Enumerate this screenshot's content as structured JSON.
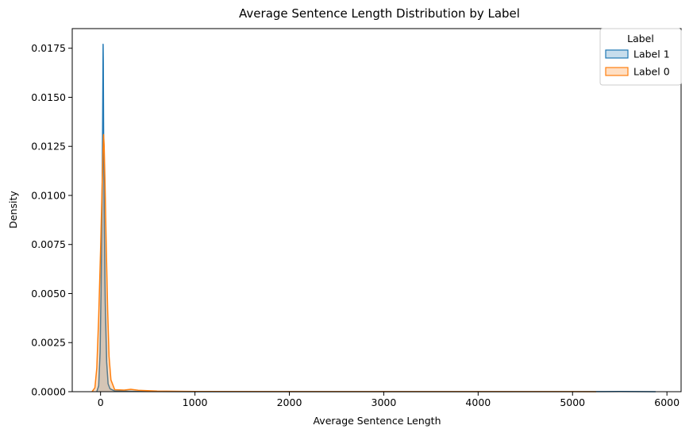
{
  "chart_data": {
    "type": "area",
    "title": "Average Sentence Length Distribution by Label",
    "xlabel": "Average Sentence Length",
    "ylabel": "Density",
    "xlim": [
      -300,
      6150
    ],
    "ylim": [
      0,
      0.0185
    ],
    "xticks": [
      0,
      1000,
      2000,
      3000,
      4000,
      5000,
      6000
    ],
    "xtick_labels": [
      "0",
      "1000",
      "2000",
      "3000",
      "4000",
      "5000",
      "6000"
    ],
    "yticks": [
      0,
      0.0025,
      0.005,
      0.0075,
      0.01,
      0.0125,
      0.015,
      0.0175
    ],
    "ytick_labels": [
      "0.0000",
      "0.0025",
      "0.0050",
      "0.0075",
      "0.0100",
      "0.0125",
      "0.0150",
      "0.0175"
    ],
    "grid": false,
    "legend": {
      "title": "Label",
      "placement": "top-right"
    },
    "series": [
      {
        "name": "Label 1",
        "color": "#1f77b4",
        "fill": "#1f77b4",
        "fill_opacity": 0.25,
        "points": [
          [
            -40,
            0
          ],
          [
            -20,
            0.0003
          ],
          [
            -5,
            0.002
          ],
          [
            5,
            0.005
          ],
          [
            15,
            0.0095
          ],
          [
            22,
            0.0135
          ],
          [
            25,
            0.0162
          ],
          [
            27,
            0.0177
          ],
          [
            29,
            0.0168
          ],
          [
            33,
            0.0125
          ],
          [
            40,
            0.0085
          ],
          [
            50,
            0.0045
          ],
          [
            65,
            0.0015
          ],
          [
            80,
            0.0004
          ],
          [
            100,
            0.00015
          ],
          [
            150,
            4e-05
          ],
          [
            400,
            1e-05
          ],
          [
            1000,
            2e-06
          ],
          [
            3000,
            5e-07
          ],
          [
            5300,
            3e-06
          ],
          [
            5500,
            8e-06
          ],
          [
            5700,
            4e-06
          ],
          [
            5880,
            0
          ]
        ]
      },
      {
        "name": "Label 0",
        "color": "#ff7f0e",
        "fill": "#ff7f0e",
        "fill_opacity": 0.25,
        "points": [
          [
            -90,
            0
          ],
          [
            -60,
            0.0002
          ],
          [
            -40,
            0.0012
          ],
          [
            -20,
            0.0038
          ],
          [
            0,
            0.0072
          ],
          [
            15,
            0.0102
          ],
          [
            25,
            0.0121
          ],
          [
            32,
            0.0131
          ],
          [
            38,
            0.0126
          ],
          [
            48,
            0.0105
          ],
          [
            60,
            0.0075
          ],
          [
            75,
            0.0042
          ],
          [
            90,
            0.0018
          ],
          [
            110,
            0.0006
          ],
          [
            150,
            0.0001
          ],
          [
            250,
            8e-05
          ],
          [
            320,
            0.00012
          ],
          [
            400,
            7e-05
          ],
          [
            600,
            3e-05
          ],
          [
            1000,
            1e-05
          ],
          [
            3000,
            5e-06
          ],
          [
            5000,
            3e-06
          ],
          [
            5250,
            0
          ]
        ]
      }
    ]
  }
}
